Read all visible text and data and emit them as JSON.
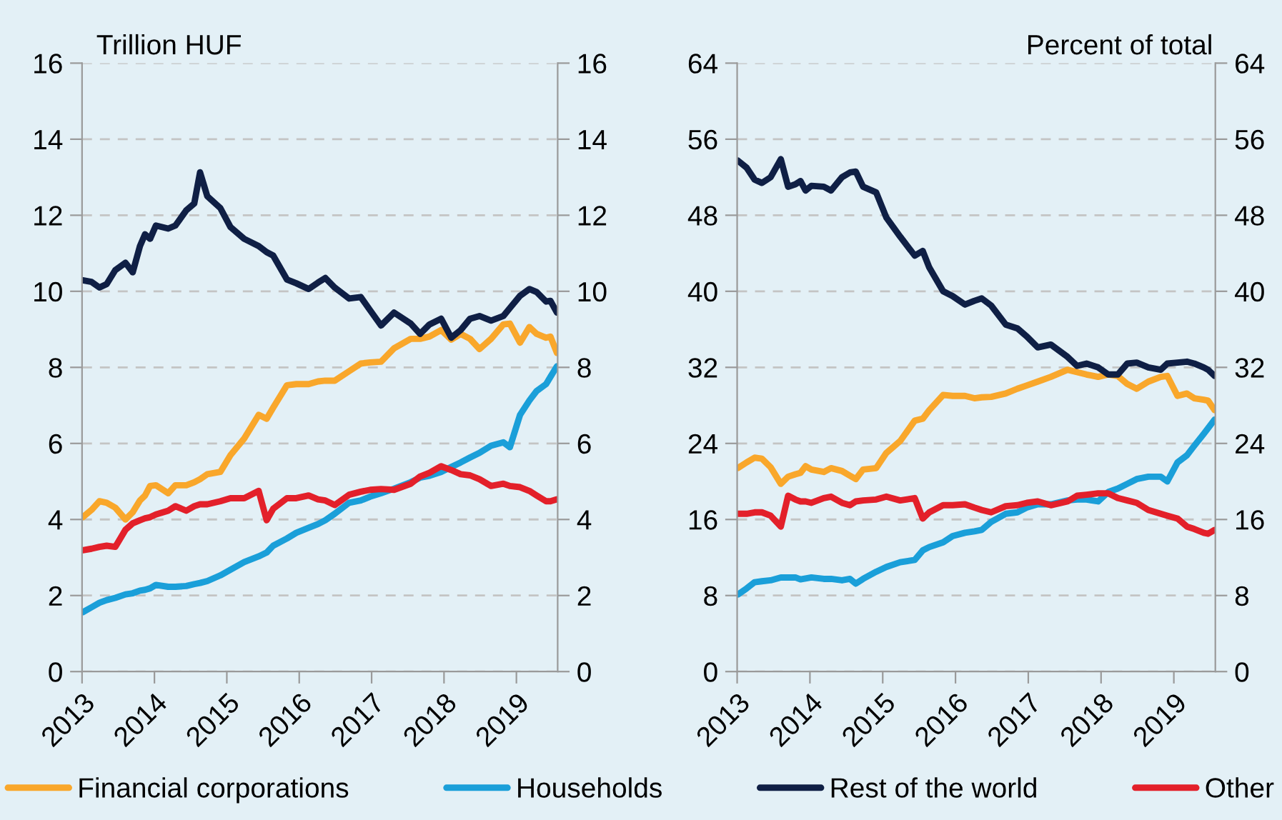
{
  "chart_data": [
    {
      "type": "line",
      "ylabel": "Trillion HUF",
      "legend": "bottom",
      "grid": "y",
      "tick_labels": "xy",
      "x": [
        2013.01,
        2013.13,
        2013.24,
        2013.34,
        2013.46,
        2013.6,
        2013.7,
        2013.8,
        2013.87,
        2013.94,
        2014.02,
        2014.19,
        2014.29,
        2014.44,
        2014.55,
        2014.63,
        2014.73,
        2014.91,
        2015.05,
        2015.24,
        2015.44,
        2015.55,
        2015.64,
        2015.83,
        2015.96,
        2016.13,
        2016.26,
        2016.36,
        2016.49,
        2016.69,
        2016.85,
        2016.98,
        2017.13,
        2017.31,
        2017.54,
        2017.67,
        2017.8,
        2017.96,
        2018.1,
        2018.23,
        2018.36,
        2018.49,
        2018.65,
        2018.82,
        2018.91,
        2019.05,
        2019.18,
        2019.28,
        2019.41,
        2019.47,
        2019.56
      ],
      "xlim": [
        2013,
        2019.57
      ],
      "xticks": [
        2013,
        2014,
        2015,
        2016,
        2017,
        2018,
        2019
      ],
      "ylim": [
        0,
        16
      ],
      "yticks": [
        0,
        2,
        4,
        6,
        8,
        10,
        12,
        14,
        16
      ],
      "y2lim": [
        0,
        16
      ],
      "y2ticks": [
        0,
        2,
        4,
        6,
        8,
        10,
        12,
        14,
        16
      ],
      "series": [
        {
          "name": "Financial corporations",
          "color": "#f9a72b",
          "values": [
            4.06,
            4.25,
            4.48,
            4.44,
            4.31,
            4.0,
            4.19,
            4.5,
            4.63,
            4.88,
            4.9,
            4.69,
            4.9,
            4.9,
            4.98,
            5.06,
            5.19,
            5.25,
            5.69,
            6.13,
            6.75,
            6.65,
            6.94,
            7.53,
            7.56,
            7.56,
            7.63,
            7.65,
            7.65,
            7.9,
            8.1,
            8.13,
            8.15,
            8.5,
            8.75,
            8.75,
            8.81,
            8.98,
            8.73,
            8.88,
            8.75,
            8.48,
            8.75,
            9.13,
            9.15,
            8.65,
            9.06,
            8.88,
            8.78,
            8.81,
            8.38
          ]
        },
        {
          "name": "Households",
          "color": "#1a9fd9",
          "values": [
            1.56,
            1.69,
            1.81,
            1.88,
            1.94,
            2.03,
            2.06,
            2.13,
            2.15,
            2.19,
            2.28,
            2.23,
            2.23,
            2.25,
            2.3,
            2.33,
            2.38,
            2.53,
            2.68,
            2.88,
            3.03,
            3.13,
            3.31,
            3.5,
            3.65,
            3.78,
            3.88,
            3.98,
            4.15,
            4.44,
            4.5,
            4.6,
            4.69,
            4.81,
            4.98,
            5.1,
            5.15,
            5.25,
            5.38,
            5.5,
            5.63,
            5.75,
            5.94,
            6.03,
            5.9,
            6.75,
            7.13,
            7.38,
            7.56,
            7.75,
            8.03
          ]
        },
        {
          "name": "Rest of the world",
          "color": "#0f1f45",
          "values": [
            10.29,
            10.25,
            10.1,
            10.19,
            10.56,
            10.75,
            10.5,
            11.19,
            11.5,
            11.38,
            11.73,
            11.65,
            11.73,
            12.13,
            12.31,
            13.13,
            12.5,
            12.19,
            11.69,
            11.38,
            11.19,
            11.03,
            10.94,
            10.31,
            10.21,
            10.06,
            10.23,
            10.35,
            10.1,
            9.81,
            9.85,
            9.5,
            9.1,
            9.44,
            9.15,
            8.88,
            9.13,
            9.28,
            8.78,
            8.98,
            9.28,
            9.35,
            9.23,
            9.35,
            9.56,
            9.88,
            10.06,
            9.98,
            9.73,
            9.75,
            9.44
          ]
        },
        {
          "name": "Other",
          "color": "#e3202a",
          "values": [
            3.19,
            3.23,
            3.28,
            3.31,
            3.28,
            3.73,
            3.9,
            3.98,
            4.03,
            4.06,
            4.13,
            4.23,
            4.35,
            4.23,
            4.35,
            4.4,
            4.4,
            4.48,
            4.56,
            4.56,
            4.75,
            3.98,
            4.28,
            4.56,
            4.56,
            4.63,
            4.53,
            4.5,
            4.38,
            4.65,
            4.73,
            4.78,
            4.8,
            4.78,
            4.94,
            5.13,
            5.23,
            5.4,
            5.3,
            5.19,
            5.16,
            5.06,
            4.88,
            4.94,
            4.88,
            4.85,
            4.75,
            4.63,
            4.48,
            4.48,
            4.53
          ]
        }
      ]
    },
    {
      "type": "line",
      "y2label": "Percent of total",
      "legend": "bottom",
      "grid": "y",
      "tick_labels": "xy",
      "x": [
        2013.01,
        2013.13,
        2013.24,
        2013.34,
        2013.46,
        2013.6,
        2013.7,
        2013.8,
        2013.87,
        2013.94,
        2014.02,
        2014.19,
        2014.29,
        2014.44,
        2014.55,
        2014.63,
        2014.73,
        2014.91,
        2015.05,
        2015.24,
        2015.44,
        2015.55,
        2015.64,
        2015.83,
        2015.96,
        2016.13,
        2016.26,
        2016.36,
        2016.49,
        2016.69,
        2016.85,
        2016.98,
        2017.13,
        2017.31,
        2017.54,
        2017.67,
        2017.8,
        2017.96,
        2018.1,
        2018.23,
        2018.36,
        2018.49,
        2018.65,
        2018.82,
        2018.91,
        2019.05,
        2019.18,
        2019.28,
        2019.41,
        2019.47,
        2019.56
      ],
      "xlim": [
        2013,
        2019.57
      ],
      "xticks": [
        2013,
        2014,
        2015,
        2016,
        2017,
        2018,
        2019
      ],
      "ylim": [
        0,
        64
      ],
      "yticks": [
        0,
        8,
        16,
        24,
        32,
        40,
        48,
        56,
        64
      ],
      "y2lim": [
        0,
        64
      ],
      "y2ticks": [
        0,
        8,
        16,
        24,
        32,
        40,
        48,
        56,
        64
      ],
      "series": [
        {
          "color": "#f9a72b",
          "values": [
            21.4,
            22,
            22.5,
            22.4,
            21.5,
            19.75,
            20.5,
            20.75,
            20.9,
            21.6,
            21.25,
            21,
            21.4,
            21.1,
            20.6,
            20.25,
            21.25,
            21.4,
            23,
            24.25,
            26.4,
            26.6,
            27.5,
            29.1,
            29,
            29,
            28.75,
            28.85,
            28.9,
            29.25,
            29.75,
            30.1,
            30.5,
            31,
            31.75,
            31.5,
            31.25,
            31,
            31.25,
            31.1,
            30.25,
            29.75,
            30.5,
            31,
            31.1,
            29,
            29.25,
            28.75,
            28.6,
            28.5,
            27.5
          ]
        },
        {
          "color": "#1a9fd9",
          "values": [
            8.1,
            8.75,
            9.4,
            9.5,
            9.6,
            9.9,
            9.9,
            9.9,
            9.7,
            9.8,
            9.9,
            9.75,
            9.75,
            9.6,
            9.75,
            9.25,
            9.75,
            10.5,
            11,
            11.5,
            11.75,
            12.75,
            13.1,
            13.6,
            14.25,
            14.6,
            14.75,
            14.9,
            15.75,
            16.6,
            16.75,
            17.25,
            17.6,
            17.6,
            18,
            18.1,
            18.1,
            17.9,
            18.9,
            19.25,
            19.75,
            20.25,
            20.5,
            20.5,
            20,
            22,
            22.75,
            23.75,
            25,
            25.6,
            26.5
          ]
        },
        {
          "color": "#0f1f45",
          "values": [
            53.75,
            53,
            51.75,
            51.4,
            52,
            53.9,
            51,
            51.25,
            51.6,
            50.6,
            51.1,
            51,
            50.6,
            52,
            52.5,
            52.6,
            51,
            50.4,
            47.75,
            45.75,
            43.75,
            44.25,
            42.5,
            40,
            39.5,
            38.6,
            39,
            39.25,
            38.5,
            36.5,
            36.1,
            35.25,
            34.1,
            34.4,
            33.1,
            32.15,
            32.4,
            32,
            31.25,
            31.25,
            32.4,
            32.5,
            32,
            31.75,
            32.4,
            32.5,
            32.6,
            32.4,
            32,
            31.75,
            31.1
          ]
        },
        {
          "color": "#e3202a",
          "values": [
            16.6,
            16.6,
            16.75,
            16.75,
            16.4,
            15.25,
            18.5,
            18.1,
            17.9,
            17.9,
            17.75,
            18.25,
            18.4,
            17.75,
            17.5,
            17.9,
            18,
            18.1,
            18.4,
            18,
            18.25,
            16.1,
            16.75,
            17.5,
            17.5,
            17.6,
            17.25,
            17,
            16.75,
            17.4,
            17.5,
            17.75,
            17.9,
            17.5,
            17.9,
            18.5,
            18.6,
            18.75,
            18.75,
            18.25,
            18,
            17.75,
            17,
            16.6,
            16.4,
            16.1,
            15.25,
            15,
            14.6,
            14.5,
            14.9
          ]
        }
      ]
    }
  ]
}
